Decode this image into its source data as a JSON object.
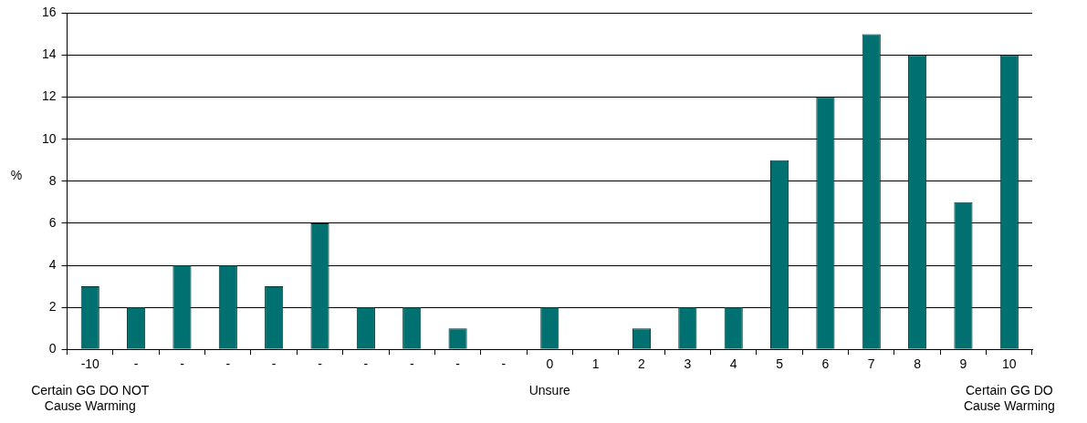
{
  "chart_data": {
    "type": "bar",
    "ylabel": "%",
    "categories": [
      "-10",
      "-",
      "-",
      "-",
      "-",
      "-",
      "-",
      "-",
      "-",
      "-",
      "0",
      "1",
      "2",
      "3",
      "4",
      "5",
      "6",
      "7",
      "8",
      "9",
      "10"
    ],
    "values": [
      3,
      2,
      4,
      4,
      3,
      6,
      2,
      2,
      1,
      0,
      2,
      0,
      1,
      2,
      2,
      9,
      12,
      15,
      14,
      7,
      14
    ],
    "color": "#007070",
    "ylim": [
      0,
      16
    ],
    "yticks": [
      0,
      2,
      4,
      6,
      8,
      10,
      12,
      14,
      16
    ],
    "grid": "y",
    "legend": false,
    "annotations": [
      "Certain GG DO NOT\nCause Warming",
      "Unsure",
      "Certain GG DO\nCause Warming"
    ]
  }
}
